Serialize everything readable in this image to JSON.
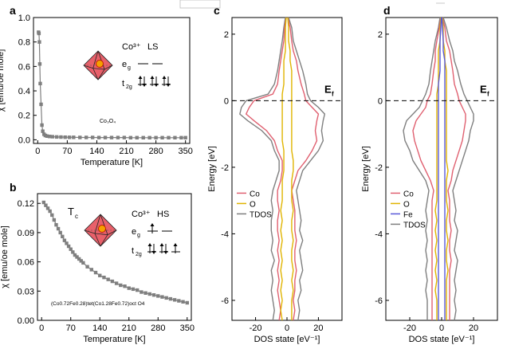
{
  "chart_data": [
    {
      "panel": "a",
      "type": "line",
      "xlabel": "Temperature [K]",
      "ylabel": "χ [emu/oe mole]",
      "xlim": [
        -10,
        360
      ],
      "ylim": [
        -0.03,
        1.0
      ],
      "xticks": [
        0,
        70,
        140,
        210,
        280,
        350
      ],
      "yticks": [
        0.0,
        0.2,
        0.4,
        0.6,
        0.8,
        1.0
      ],
      "ytick_labels": [
        "0.0",
        "0.2",
        "0.4",
        "0.6",
        "0.8",
        "1.0"
      ],
      "series": [
        {
          "name": "Co3O4",
          "color": "#7f7f7f",
          "x": [
            2,
            3,
            4,
            5,
            6,
            8,
            10,
            12,
            15,
            18,
            22,
            28,
            35,
            45,
            55,
            65,
            75,
            85,
            100,
            115,
            130,
            145,
            160,
            175,
            190,
            205,
            220,
            235,
            250,
            265,
            280,
            295,
            310,
            325,
            340,
            350
          ],
          "y": [
            0.88,
            0.87,
            0.8,
            0.62,
            0.46,
            0.29,
            0.12,
            0.07,
            0.045,
            0.035,
            0.03,
            0.027,
            0.025,
            0.023,
            0.022,
            0.021,
            0.02,
            0.02,
            0.019,
            0.019,
            0.019,
            0.018,
            0.018,
            0.018,
            0.018,
            0.018,
            0.017,
            0.017,
            0.017,
            0.017,
            0.017,
            0.017,
            0.017,
            0.017,
            0.017,
            0.017
          ]
        }
      ],
      "annotations": {
        "sample": "Co₃O₄",
        "ion": "Co³⁺",
        "spin": "LS",
        "eg": "e",
        "eg_sub": "g",
        "t2g": "t",
        "t2g_sub": "2g"
      }
    },
    {
      "panel": "b",
      "type": "line",
      "xlabel": "Temperature [K]",
      "ylabel": "χ [emu/oe mole]",
      "xlim": [
        -10,
        360
      ],
      "ylim": [
        0.0,
        0.13
      ],
      "xticks": [
        0,
        70,
        140,
        210,
        280,
        350
      ],
      "yticks": [
        0.0,
        0.03,
        0.06,
        0.09,
        0.12
      ],
      "ytick_labels": [
        "0.00",
        "0.03",
        "0.06",
        "0.09",
        "0.12"
      ],
      "series": [
        {
          "name": "(Co0.72Fe0.28)tet(Co1.28Fe0.72)oct O4",
          "color": "#7f7f7f",
          "x": [
            5,
            10,
            15,
            20,
            25,
            30,
            35,
            40,
            45,
            50,
            55,
            60,
            65,
            70,
            75,
            80,
            85,
            90,
            95,
            100,
            110,
            120,
            130,
            140,
            150,
            160,
            170,
            180,
            190,
            200,
            210,
            220,
            230,
            240,
            250,
            260,
            270,
            280,
            290,
            300,
            310,
            320,
            330,
            340,
            350
          ],
          "y": [
            0.121,
            0.118,
            0.115,
            0.112,
            0.108,
            0.103,
            0.098,
            0.094,
            0.09,
            0.086,
            0.082,
            0.079,
            0.076,
            0.073,
            0.07,
            0.067,
            0.065,
            0.063,
            0.061,
            0.059,
            0.055,
            0.052,
            0.049,
            0.046,
            0.044,
            0.042,
            0.04,
            0.038,
            0.036,
            0.035,
            0.033,
            0.032,
            0.031,
            0.029,
            0.028,
            0.027,
            0.026,
            0.025,
            0.024,
            0.023,
            0.022,
            0.021,
            0.02,
            0.019,
            0.018
          ]
        }
      ],
      "annotations": {
        "tc": "T",
        "tc_sub": "c",
        "sample": "(Co0.72Fe0.28)tet(Co1.28Fe0.72)oct O4",
        "ion": "Co³⁺",
        "spin": "HS",
        "eg": "e",
        "eg_sub": "g",
        "t2g": "t",
        "t2g_sub": "2g"
      }
    },
    {
      "panel": "c",
      "type": "line",
      "xlabel": "DOS state [eV⁻¹]",
      "ylabel": "Energy [eV]",
      "xlim": [
        -35,
        35
      ],
      "ylim": [
        -6.6,
        2.5
      ],
      "xticks": [
        -20,
        0,
        20
      ],
      "yticks": [
        -6,
        -4,
        -2,
        0,
        2
      ],
      "fermi_label": "E",
      "fermi_sub": "f",
      "legend": [
        "Co",
        "O",
        "TDOS"
      ],
      "series": [
        {
          "name": "TDOS",
          "color": "#7f7f7f",
          "energy": [
            2.5,
            2.2,
            1.8,
            1.5,
            1.2,
            0.9,
            0.5,
            0.2,
            0.0,
            -0.2,
            -0.4,
            -0.6,
            -0.9,
            -1.2,
            -1.5,
            -1.8,
            -2.1,
            -2.4,
            -2.7,
            -3.0,
            -3.3,
            -3.6,
            -3.9,
            -4.2,
            -4.5,
            -4.8,
            -5.1,
            -5.4,
            -5.7,
            -6.0,
            -6.3,
            -6.6
          ],
          "right": [
            1,
            3,
            4,
            6,
            8,
            10,
            12,
            13,
            15,
            20,
            24,
            23,
            22,
            23,
            20,
            15,
            10,
            8,
            6,
            7,
            8,
            9,
            8,
            10,
            8,
            9,
            10,
            8,
            9,
            7,
            8,
            7
          ],
          "left": [
            -1,
            -2,
            -3,
            -4,
            -5,
            -6,
            -8,
            -12,
            -26,
            -29,
            -30,
            -25,
            -16,
            -10,
            -8,
            -5,
            -5,
            -7,
            -9,
            -10,
            -9,
            -10,
            -10,
            -9,
            -10,
            -8,
            -10,
            -9,
            -10,
            -9,
            -8,
            -9
          ]
        },
        {
          "name": "Co",
          "color": "#e06070",
          "energy": [
            2.5,
            2.2,
            1.8,
            1.5,
            1.2,
            0.9,
            0.5,
            0.2,
            0.0,
            -0.2,
            -0.4,
            -0.6,
            -0.9,
            -1.2,
            -1.5,
            -1.8,
            -2.1,
            -2.4,
            -2.7,
            -3.0,
            -3.3,
            -3.6,
            -3.9,
            -4.2,
            -4.5,
            -4.8,
            -5.1,
            -5.4,
            -5.7,
            -6.0,
            -6.3,
            -6.6
          ],
          "right": [
            0.5,
            2,
            3,
            4,
            6,
            7,
            9,
            11,
            12,
            16,
            20,
            19,
            18,
            19,
            16,
            12,
            7,
            5,
            3,
            4,
            5,
            5,
            5,
            6,
            5,
            5,
            6,
            5,
            5,
            4,
            5,
            4
          ],
          "left": [
            -0.5,
            -1.5,
            -2,
            -3,
            -4,
            -5,
            -6,
            -9,
            -21,
            -24,
            -26,
            -21,
            -13,
            -8,
            -6,
            -3,
            -3,
            -4,
            -6,
            -6,
            -5,
            -6,
            -6,
            -5,
            -6,
            -5,
            -6,
            -5,
            -6,
            -5,
            -4,
            -5
          ]
        },
        {
          "name": "O",
          "color": "#e0b400",
          "energy": [
            2.5,
            2.2,
            1.8,
            1.5,
            1.2,
            0.9,
            0.5,
            0.2,
            0.0,
            -0.2,
            -0.4,
            -0.6,
            -0.9,
            -1.2,
            -1.5,
            -1.8,
            -2.1,
            -2.4,
            -2.7,
            -3.0,
            -3.3,
            -3.6,
            -3.9,
            -4.2,
            -4.5,
            -4.8,
            -5.1,
            -5.4,
            -5.7,
            -6.0,
            -6.3,
            -6.6
          ],
          "right": [
            0.5,
            1,
            1,
            2,
            2,
            3,
            3,
            3,
            3,
            3,
            3,
            3,
            3,
            3,
            3,
            4,
            4,
            3,
            3,
            3,
            4,
            3,
            3,
            4,
            3,
            3,
            4,
            3,
            4,
            3,
            3,
            3
          ],
          "left": [
            -0.5,
            -1,
            -1,
            -1,
            -2,
            -2,
            -2,
            -3,
            -3,
            -3,
            -3,
            -3,
            -3,
            -3,
            -2,
            -2,
            -2,
            -3,
            -3,
            -3,
            -4,
            -3,
            -4,
            -3,
            -4,
            -3,
            -4,
            -3,
            -4,
            -3,
            -4,
            -3
          ]
        }
      ]
    },
    {
      "panel": "d",
      "type": "line",
      "xlabel": "DOS state [eV⁻¹]",
      "ylabel": "Energy [eV]",
      "xlim": [
        -35,
        35
      ],
      "ylim": [
        -6.6,
        2.5
      ],
      "xticks": [
        -20,
        0,
        20
      ],
      "yticks": [
        -6,
        -4,
        -2,
        0,
        2
      ],
      "fermi_label": "E",
      "fermi_sub": "f",
      "legend": [
        "Co",
        "O",
        "Fe",
        "TDOS"
      ],
      "series": [
        {
          "name": "TDOS",
          "color": "#7f7f7f",
          "energy": [
            2.5,
            2.2,
            1.8,
            1.5,
            1.2,
            0.9,
            0.5,
            0.2,
            0.0,
            -0.2,
            -0.4,
            -0.6,
            -0.9,
            -1.2,
            -1.5,
            -1.8,
            -2.1,
            -2.4,
            -2.7,
            -3.0,
            -3.3,
            -3.6,
            -3.9,
            -4.2,
            -4.5,
            -4.8,
            -5.1,
            -5.4,
            -5.7,
            -6.0,
            -6.3,
            -6.6
          ],
          "right": [
            1,
            3,
            5,
            7,
            8,
            10,
            12,
            14,
            16,
            18,
            20,
            20,
            18,
            17,
            15,
            13,
            11,
            9,
            7,
            8,
            9,
            8,
            10,
            9,
            8,
            10,
            9,
            8,
            9,
            8,
            9,
            8
          ],
          "left": [
            -1,
            -2,
            -4,
            -5,
            -6,
            -7,
            -8,
            -10,
            -12,
            -14,
            -18,
            -22,
            -24,
            -23,
            -20,
            -18,
            -14,
            -10,
            -8,
            -9,
            -10,
            -9,
            -10,
            -9,
            -10,
            -9,
            -10,
            -9,
            -10,
            -9,
            -9,
            -9
          ]
        },
        {
          "name": "Co",
          "color": "#e06070",
          "energy": [
            2.5,
            2.2,
            1.8,
            1.5,
            1.2,
            0.9,
            0.5,
            0.2,
            0.0,
            -0.2,
            -0.4,
            -0.6,
            -0.9,
            -1.2,
            -1.5,
            -1.8,
            -2.1,
            -2.4,
            -2.7,
            -3.0,
            -3.3,
            -3.6,
            -3.9,
            -4.2,
            -4.5,
            -4.8,
            -5.1,
            -5.4,
            -5.7,
            -6.0,
            -6.3,
            -6.6
          ],
          "right": [
            0.5,
            2,
            3,
            5,
            6,
            7,
            8,
            10,
            11,
            13,
            15,
            15,
            14,
            13,
            11,
            9,
            7,
            6,
            4,
            5,
            5,
            5,
            6,
            5,
            5,
            6,
            5,
            5,
            5,
            5,
            5,
            5
          ],
          "left": [
            -0.5,
            -1.5,
            -3,
            -4,
            -4,
            -5,
            -6,
            -7,
            -9,
            -10,
            -13,
            -16,
            -18,
            -17,
            -15,
            -13,
            -10,
            -7,
            -5,
            -6,
            -6,
            -6,
            -6,
            -6,
            -6,
            -6,
            -6,
            -6,
            -6,
            -6,
            -6,
            -6
          ]
        },
        {
          "name": "O",
          "color": "#e0b400",
          "energy": [
            2.5,
            2.2,
            1.8,
            1.5,
            1.2,
            0.9,
            0.5,
            0.2,
            0.0,
            -0.2,
            -0.4,
            -0.6,
            -0.9,
            -1.2,
            -1.5,
            -1.8,
            -2.1,
            -2.4,
            -2.7,
            -3.0,
            -3.3,
            -3.6,
            -3.9,
            -4.2,
            -4.5,
            -4.8,
            -5.1,
            -5.4,
            -5.7,
            -6.0,
            -6.3,
            -6.6
          ],
          "right": [
            0.5,
            1,
            1,
            2,
            2,
            3,
            3,
            3,
            3,
            3,
            3,
            3,
            3,
            3,
            3,
            3,
            4,
            3,
            3,
            3,
            4,
            3,
            3,
            4,
            3,
            3,
            4,
            3,
            3,
            3,
            3,
            3
          ],
          "left": [
            -0.5,
            -1,
            -1,
            -2,
            -2,
            -2,
            -2,
            -3,
            -3,
            -3,
            -3,
            -3,
            -3,
            -3,
            -3,
            -3,
            -3,
            -3,
            -3,
            -3,
            -4,
            -3,
            -4,
            -3,
            -4,
            -3,
            -4,
            -3,
            -4,
            -3,
            -3,
            -3
          ]
        },
        {
          "name": "Fe",
          "color": "#5a5ad8",
          "energy": [
            2.5,
            2.2,
            1.8,
            1.5,
            1.2,
            0.9,
            0.5,
            0.2,
            0.0,
            -0.2,
            -0.4,
            -0.6,
            -0.9,
            -1.2,
            -1.5,
            -1.8,
            -2.1,
            -2.4,
            -2.7,
            -3.0,
            -3.3,
            -3.6,
            -3.9,
            -4.2,
            -4.5,
            -4.8,
            -5.1,
            -5.4,
            -5.7,
            -6.0,
            -6.3,
            -6.6
          ],
          "right": [
            0.2,
            0.5,
            1,
            1,
            2,
            2,
            2,
            2,
            2,
            2,
            2,
            2,
            2,
            2,
            2,
            2,
            2,
            2,
            2,
            2,
            2,
            2,
            2,
            2,
            2,
            2,
            2,
            2,
            2,
            2,
            2,
            2
          ],
          "left": [
            -0.2,
            -0.5,
            -1,
            -1,
            -1,
            -1,
            -2,
            -2,
            -2,
            -2,
            -2,
            -2,
            -2,
            -2,
            -2,
            -2,
            -2,
            -2,
            -2,
            -2,
            -2,
            -2,
            -2,
            -2,
            -2,
            -2,
            -2,
            -2,
            -2,
            -2,
            -2,
            -2
          ]
        }
      ]
    }
  ]
}
